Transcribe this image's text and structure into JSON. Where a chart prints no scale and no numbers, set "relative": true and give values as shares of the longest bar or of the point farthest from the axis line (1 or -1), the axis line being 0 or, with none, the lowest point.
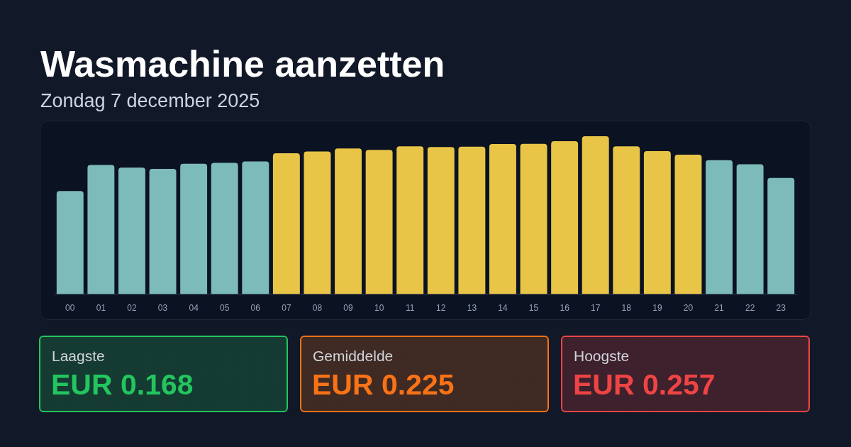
{
  "chart_data": [
    {
      "type": "bar",
      "title": "Wasmachine aanzetten",
      "subtitle": "Zondag 7 december 2025",
      "relative": true,
      "categories": [
        "00",
        "01",
        "02",
        "03",
        "04",
        "05",
        "06",
        "07",
        "08",
        "09",
        "10",
        "11",
        "12",
        "13",
        "14",
        "15",
        "16",
        "17",
        "18",
        "19",
        "20",
        "21",
        "22",
        "23"
      ],
      "values": [
        0.653,
        0.818,
        0.801,
        0.793,
        0.826,
        0.832,
        0.841,
        0.892,
        0.903,
        0.923,
        0.913,
        0.936,
        0.931,
        0.934,
        0.951,
        0.952,
        0.968,
        1,
        0.936,
        0.906,
        0.883,
        0.848,
        0.823,
        0.736
      ],
      "colors": [
        "#7dbaba",
        "#7dbaba",
        "#7dbaba",
        "#7dbaba",
        "#7dbaba",
        "#7dbaba",
        "#7dbaba",
        "#e8c547",
        "#e8c547",
        "#e8c547",
        "#e8c547",
        "#e8c547",
        "#e8c547",
        "#e8c547",
        "#e8c547",
        "#e8c547",
        "#e8c547",
        "#e8c547",
        "#e8c547",
        "#e8c547",
        "#e8c547",
        "#7dbaba",
        "#7dbaba",
        "#7dbaba"
      ]
    },
    {
      "type": "other",
      "title": "Laagste",
      "annotations": [
        "EUR 0.168"
      ],
      "color": "#22c55e"
    },
    {
      "type": "other",
      "title": "Gemiddelde",
      "annotations": [
        "EUR 0.225"
      ],
      "color": "#f97316"
    },
    {
      "type": "other",
      "title": "Hoogste",
      "annotations": [
        "EUR 0.257"
      ],
      "color": "#ef4444"
    }
  ]
}
